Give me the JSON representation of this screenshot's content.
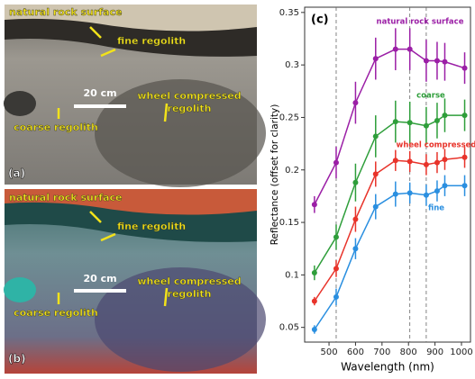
{
  "panels": [
    {
      "label": "(a)",
      "annotations": [
        "natural rock surface",
        "fine regolith",
        "20 cm",
        "wheel compressed",
        "regolith",
        "coarse regolith"
      ]
    },
    {
      "label": "(b)",
      "annotations": [
        "natural rock surface",
        "fine regolith",
        "20 cm",
        "wheel compressed",
        "regolith",
        "coarse regolith"
      ]
    }
  ],
  "chart_data": {
    "type": "line",
    "title": "(c)",
    "x_label": "Wavelength (nm)",
    "y_label": "Reflectance (offset for clarity)",
    "x": [
      445,
      527,
      600,
      676,
      751,
      805,
      867,
      908,
      937,
      1012
    ],
    "series": [
      {
        "name": "natural rock surface",
        "color": "#9b1fa6",
        "values": [
          0.167,
          0.207,
          0.264,
          0.306,
          0.315,
          0.315,
          0.304,
          0.304,
          0.303,
          0.297
        ],
        "errors": [
          0.008,
          0.015,
          0.02,
          0.02,
          0.02,
          0.02,
          0.02,
          0.018,
          0.018,
          0.015
        ]
      },
      {
        "name": "coarse",
        "color": "#2e9e3a",
        "values": [
          0.102,
          0.136,
          0.188,
          0.232,
          0.246,
          0.245,
          0.242,
          0.247,
          0.252,
          0.252
        ],
        "errors": [
          0.007,
          0.012,
          0.018,
          0.02,
          0.02,
          0.02,
          0.018,
          0.017,
          0.016,
          0.015
        ]
      },
      {
        "name": "wheel compressed",
        "color": "#e8332a",
        "values": [
          0.075,
          0.106,
          0.153,
          0.196,
          0.209,
          0.208,
          0.205,
          0.207,
          0.21,
          0.212
        ],
        "errors": [
          0.004,
          0.008,
          0.012,
          0.012,
          0.01,
          0.01,
          0.01,
          0.01,
          0.01,
          0.01
        ]
      },
      {
        "name": "fine",
        "color": "#2a8fe0",
        "values": [
          0.048,
          0.079,
          0.125,
          0.165,
          0.177,
          0.178,
          0.176,
          0.18,
          0.185,
          0.185
        ],
        "errors": [
          0.004,
          0.008,
          0.01,
          0.012,
          0.012,
          0.01,
          0.01,
          0.01,
          0.01,
          0.01
        ]
      }
    ],
    "vlines": [
      527,
      805,
      867
    ],
    "xlim": [
      408,
      1034
    ],
    "ylim": [
      0.036,
      0.355
    ],
    "xticks": [
      500,
      600,
      700,
      800,
      900,
      1000
    ],
    "yticks": [
      0.05,
      0.1,
      0.15,
      0.2,
      0.25,
      0.3,
      0.35
    ]
  }
}
